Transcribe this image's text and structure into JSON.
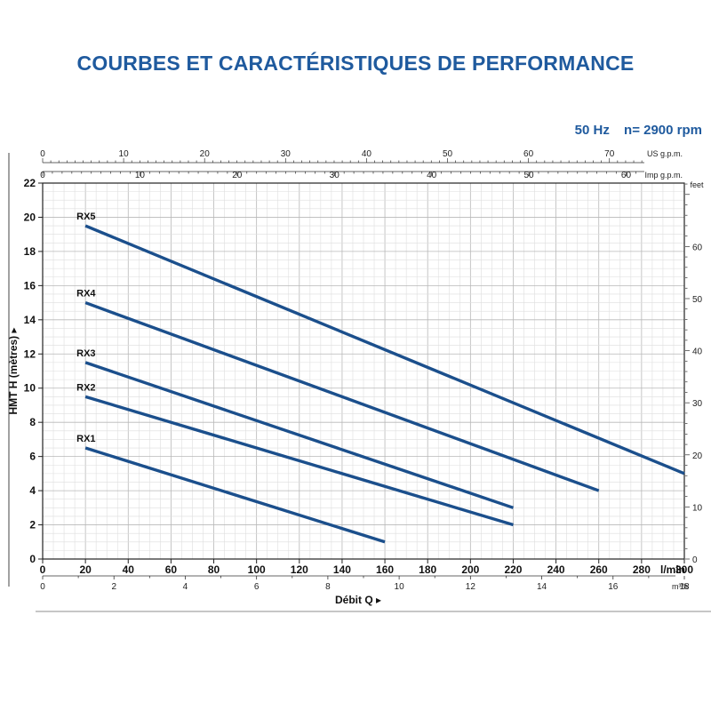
{
  "header": {
    "title": "COURBES ET CARACTÉRISTIQUES DE PERFORMANCE",
    "frequency": "50 Hz",
    "speed": "n= 2900 rpm"
  },
  "chart_data": {
    "type": "line",
    "title": "COURBES ET CARACTÉRISTIQUES DE PERFORMANCE",
    "xlabel": "Débit Q",
    "ylabel": "HMT H (mètres)",
    "x_unit": "l/min",
    "xlim": [
      0,
      300
    ],
    "ylim": [
      0,
      22
    ],
    "x_ticks": [
      0,
      20,
      40,
      60,
      80,
      100,
      120,
      140,
      160,
      180,
      200,
      220,
      240,
      260,
      280,
      300
    ],
    "y_ticks": [
      0,
      2,
      4,
      6,
      8,
      10,
      12,
      14,
      16,
      18,
      20,
      22
    ],
    "grid": true,
    "series": [
      {
        "name": "RX5",
        "x": [
          20,
          300
        ],
        "y": [
          19.5,
          5.0
        ]
      },
      {
        "name": "RX4",
        "x": [
          20,
          260
        ],
        "y": [
          15.0,
          4.0
        ]
      },
      {
        "name": "RX3",
        "x": [
          20,
          220
        ],
        "y": [
          11.5,
          3.0
        ]
      },
      {
        "name": "RX2",
        "x": [
          20,
          220
        ],
        "y": [
          9.5,
          2.0
        ]
      },
      {
        "name": "RX1",
        "x": [
          20,
          160
        ],
        "y": [
          6.5,
          1.0
        ]
      }
    ],
    "line_color": "#1b4f8c",
    "secondary_axes": {
      "us_gpm": {
        "label": "US g.p.m.",
        "ticks": [
          0,
          10,
          20,
          30,
          40,
          50,
          60,
          70
        ]
      },
      "imp_gpm": {
        "label": "Imp g.p.m.",
        "ticks": [
          0,
          10,
          20,
          30,
          40,
          50,
          60
        ]
      },
      "m3h": {
        "label": "m³/h",
        "ticks": [
          0,
          2,
          4,
          6,
          8,
          10,
          12,
          14,
          16,
          18
        ]
      },
      "feet": {
        "label": "feet",
        "ticks": [
          0,
          10,
          20,
          30,
          40,
          50,
          60
        ]
      }
    }
  }
}
